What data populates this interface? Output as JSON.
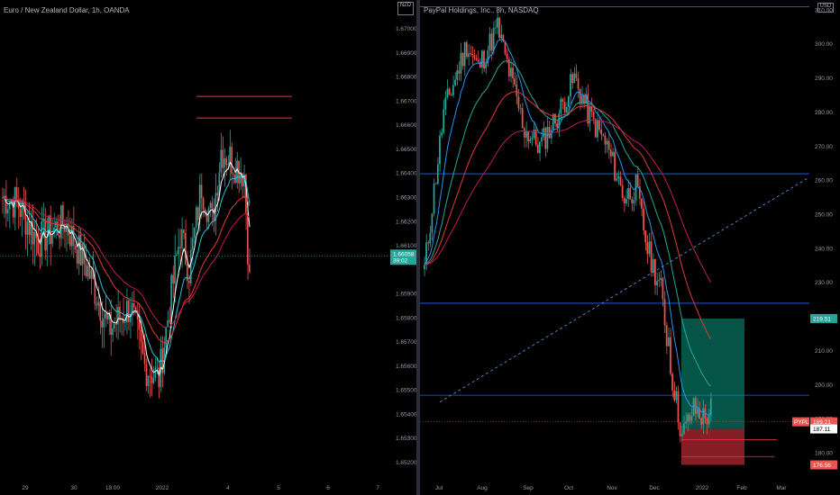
{
  "chart_data": [
    {
      "type": "candlestick",
      "title": "Euro / New Zealand Dollar, 1h, OANDA",
      "currency": "NZD",
      "y_ticks": [
        "1.67000",
        "1.66900",
        "1.66800",
        "1.66700",
        "1.66600",
        "1.66500",
        "1.66400",
        "1.66300",
        "1.66200",
        "1.66100",
        "1.65900",
        "1.65800",
        "1.65700",
        "1.65600",
        "1.65500",
        "1.65400",
        "1.65300",
        "1.65200"
      ],
      "y_tick_values": [
        1.67,
        1.669,
        1.668,
        1.667,
        1.666,
        1.665,
        1.664,
        1.663,
        1.662,
        1.661,
        1.659,
        1.658,
        1.657,
        1.656,
        1.655,
        1.654,
        1.653,
        1.652
      ],
      "ylim": [
        1.6514,
        1.6712
      ],
      "x_ticks": [
        "29",
        "30",
        "18:00",
        "2022",
        "4",
        "5",
        "6",
        "7"
      ],
      "last_price": "1.66058",
      "countdown": "39:02",
      "price_level_color": "#26a69a",
      "horizontal_lines": [
        1.6672,
        1.6663
      ],
      "horizontal_line_color": "#f23645",
      "up_color": "#26a69a",
      "down_color": "#ef5350",
      "ma_colors": [
        "#ffffff",
        "#26c6da",
        "#e53935",
        "#c2185b"
      ]
    },
    {
      "type": "candlestick",
      "title": "PayPal Holdings, Inc., 8h, NASDAQ",
      "currency": "USD",
      "y_ticks": [
        "310.00",
        "300.00",
        "290.00",
        "280.00",
        "270.00",
        "260.00",
        "250.00",
        "240.00",
        "230.00",
        "220.00",
        "210.00",
        "200.00",
        "190.00",
        "180.00"
      ],
      "y_tick_values": [
        310,
        300,
        290,
        280,
        270,
        260,
        250,
        240,
        230,
        220,
        210,
        200,
        190,
        180
      ],
      "ylim": [
        173,
        313
      ],
      "x_ticks": [
        "Jul",
        "Aug",
        "Sep",
        "Oct",
        "Nov",
        "Dec",
        "2022",
        "Feb",
        "Mar"
      ],
      "badges": [
        {
          "text": "219.51",
          "value": 219.51,
          "color": "#26a69a"
        },
        {
          "text": "189.21",
          "value": 189.21,
          "color": "#ef5350"
        },
        {
          "text": "187.11",
          "value": 187.11,
          "color": "#ffffff"
        },
        {
          "text": "176.56",
          "value": 176.56,
          "color": "#ef5350"
        }
      ],
      "symbol_badge": "PYPL",
      "horizontal_levels": [
        311,
        262,
        224,
        197
      ],
      "level_color": "#2962ff",
      "position": {
        "target": 219.51,
        "entry": 187.11,
        "stop": 176.56
      },
      "up_color": "#26a69a",
      "down_color": "#ef5350"
    }
  ]
}
